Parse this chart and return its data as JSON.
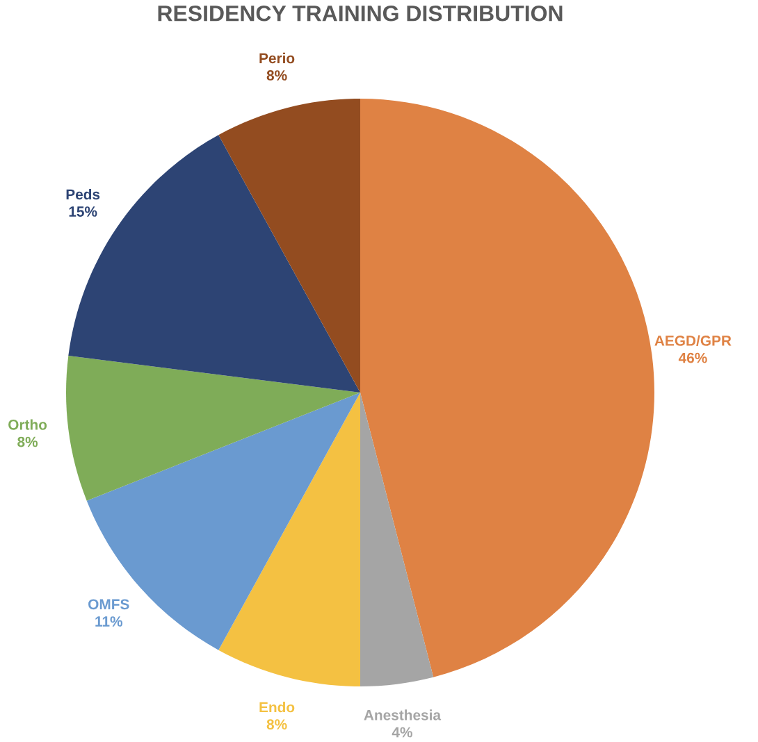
{
  "chart_data": {
    "type": "pie",
    "title": "RESIDENCY TRAINING DISTRIBUTION",
    "categories": [
      "AEGD/GPR",
      "Anesthesia",
      "Endo",
      "OMFS",
      "Ortho",
      "Peds",
      "Perio"
    ],
    "values": [
      46,
      4,
      8,
      11,
      8,
      15,
      8
    ],
    "value_labels": [
      "46%",
      "4%",
      "8%",
      "11%",
      "8%",
      "15%",
      "8%"
    ],
    "colors": [
      "#df8244",
      "#a5a5a5",
      "#f4c142",
      "#6a9ad0",
      "#7fac58",
      "#2d4474",
      "#934c20"
    ]
  }
}
